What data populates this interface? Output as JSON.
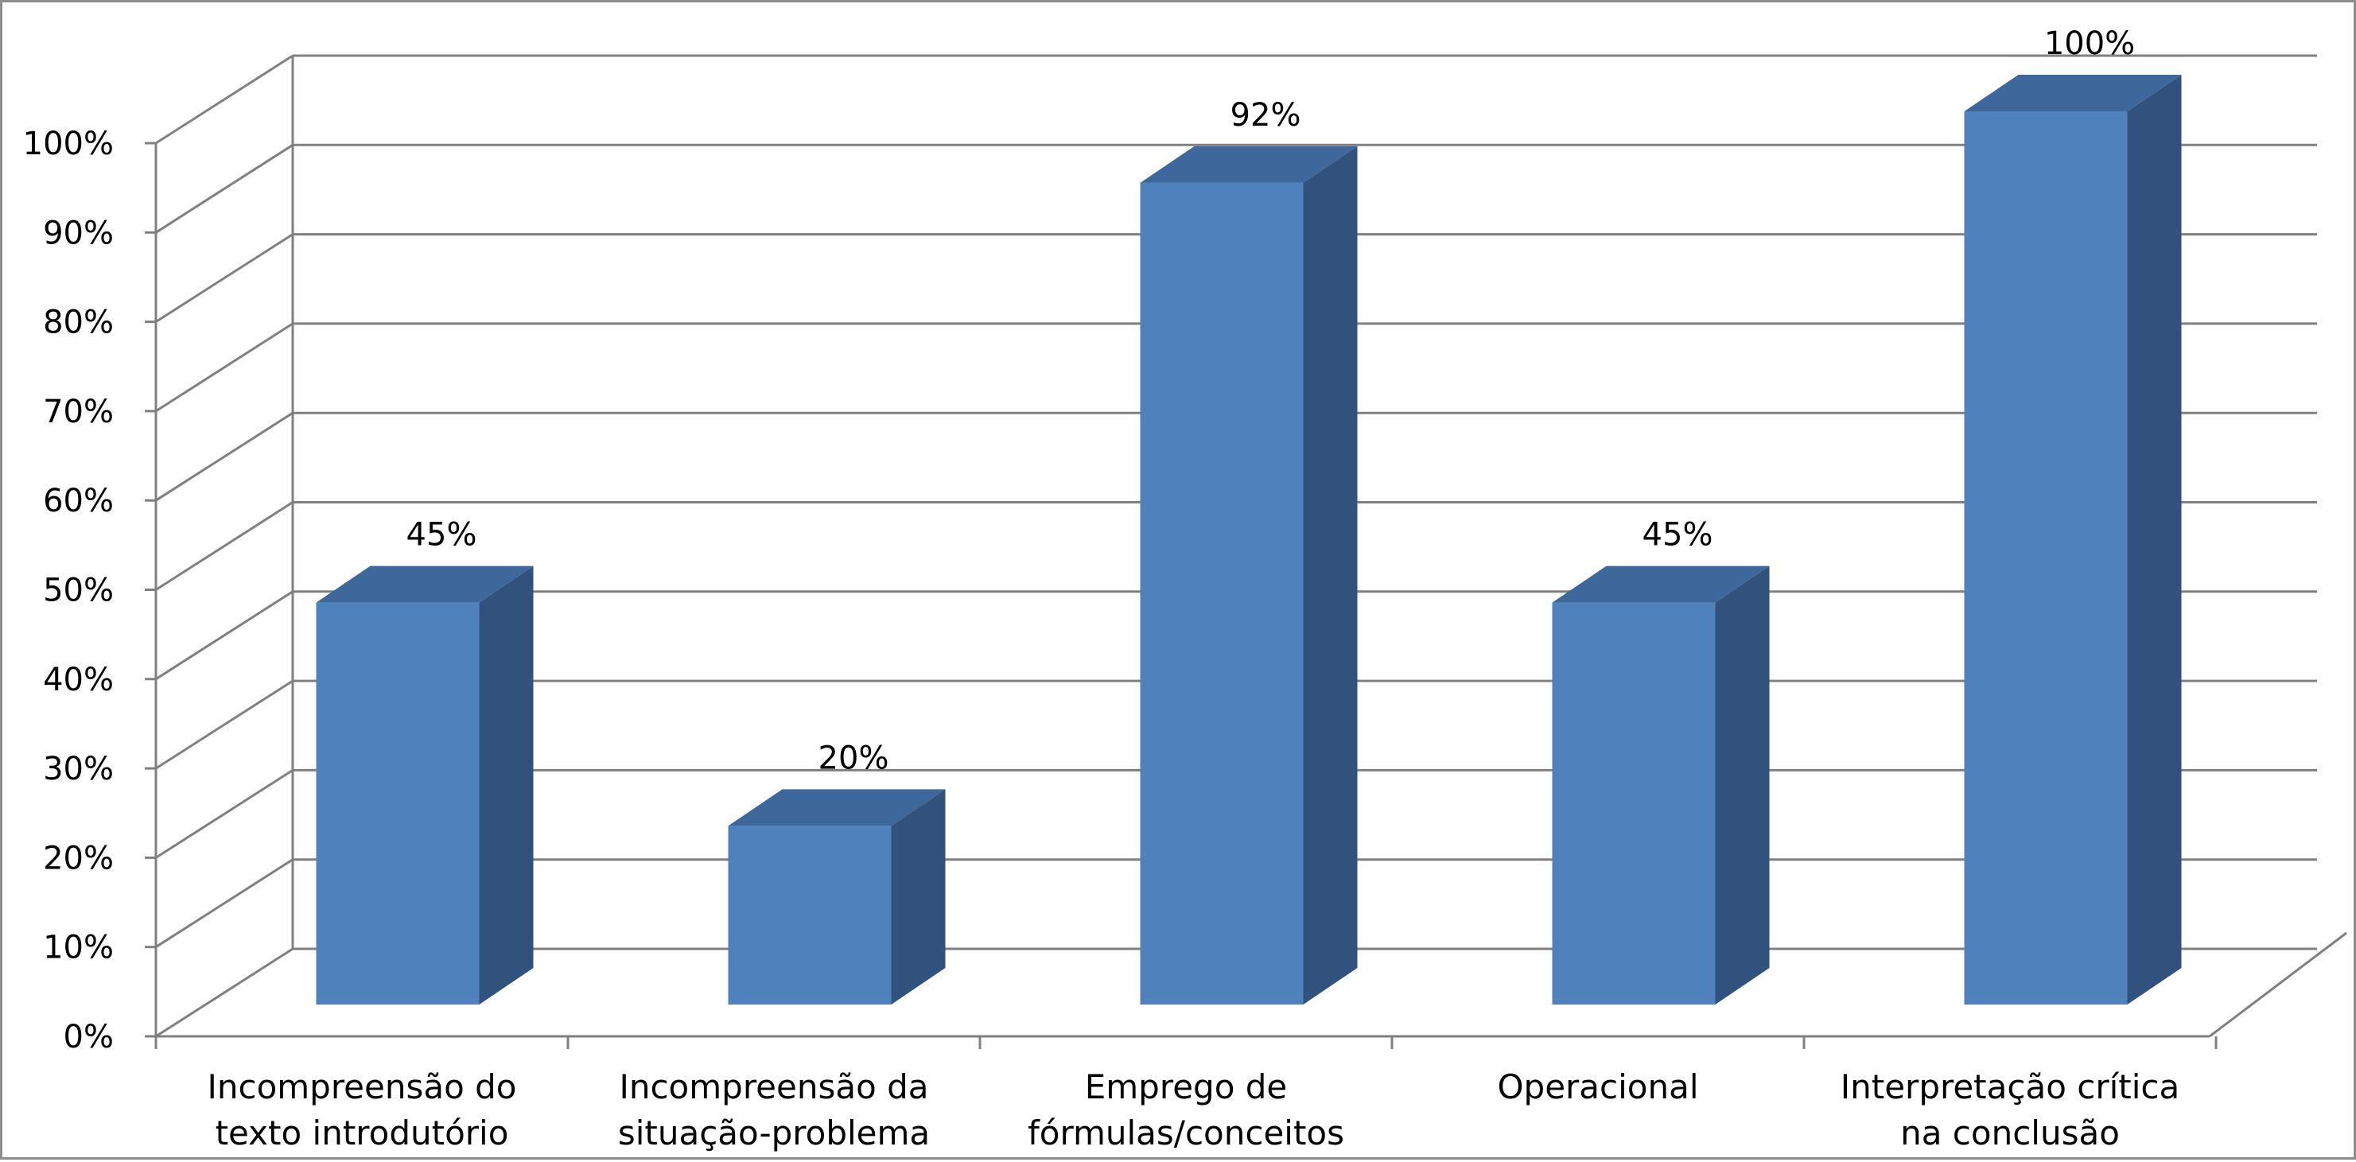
{
  "chart_data": {
    "type": "bar",
    "three_d": true,
    "categories": [
      [
        "Incompreensão do",
        "texto introdutório"
      ],
      [
        "Incompreensão da",
        "situação-problema"
      ],
      [
        "Emprego de",
        "fórmulas/conceitos"
      ],
      [
        "Operacional"
      ],
      [
        "Interpretação crítica",
        "na conclusão"
      ]
    ],
    "values": [
      45,
      20,
      92,
      45,
      100
    ],
    "data_labels": [
      "45%",
      "20%",
      "92%",
      "45%",
      "100%"
    ],
    "ylim": [
      0,
      100
    ],
    "y_ticks": [
      0,
      10,
      20,
      30,
      40,
      50,
      60,
      70,
      80,
      90,
      100
    ],
    "y_tick_labels": [
      "0%",
      "10%",
      "20%",
      "30%",
      "40%",
      "50%",
      "60%",
      "70%",
      "80%",
      "90%",
      "100%"
    ],
    "grid": true,
    "legend": "none",
    "colors": {
      "bar_front": "#4f81bd",
      "bar_side": "#31527d",
      "bar_top": "#3e679b",
      "grid": "#808080",
      "axis": "#808080"
    }
  }
}
